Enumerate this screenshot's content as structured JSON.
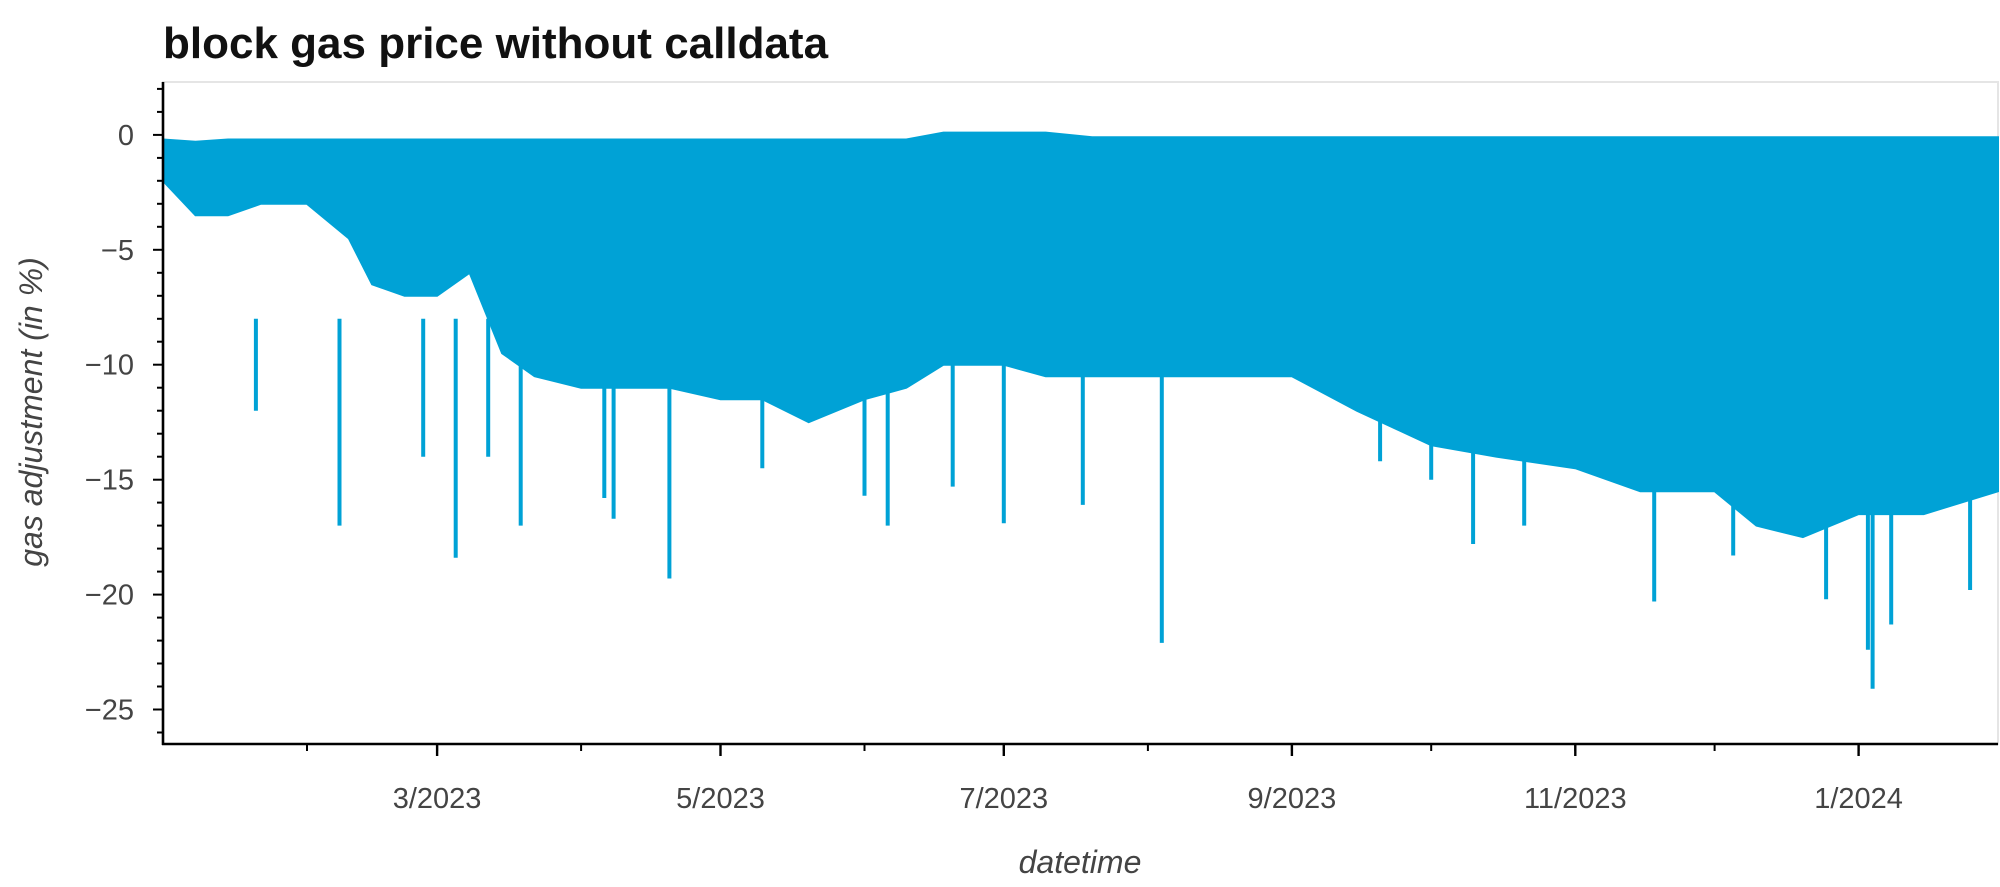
{
  "chart_data": {
    "type": "area",
    "title": "block gas price without calldata",
    "xlabel": "datetime",
    "ylabel": "gas adjustment (in %)",
    "x_range": [
      "2023-01-01",
      "2024-01-31"
    ],
    "ylim": [
      -26.5,
      2.3
    ],
    "x_ticks": [
      {
        "date": "2023-03-01",
        "label": "3/2023"
      },
      {
        "date": "2023-05-01",
        "label": "5/2023"
      },
      {
        "date": "2023-07-01",
        "label": "7/2023"
      },
      {
        "date": "2023-09-01",
        "label": "9/2023"
      },
      {
        "date": "2023-11-01",
        "label": "11/2023"
      },
      {
        "date": "2024-01-01",
        "label": "1/2024"
      }
    ],
    "y_ticks": [
      {
        "value": 0,
        "label": "0"
      },
      {
        "value": -5,
        "label": "−5"
      },
      {
        "value": -10,
        "label": "−10"
      },
      {
        "value": -15,
        "label": "−15"
      },
      {
        "value": -20,
        "label": "−20"
      },
      {
        "value": -25,
        "label": "−25"
      }
    ],
    "grid": false,
    "colors": {
      "series": "#00a2d6"
    },
    "series": [
      {
        "values_note": "daily envelope: upper = max adjustment, lower = min adjustment (in %)",
        "points": [
          {
            "x": "2023-01-01",
            "upper": -0.2,
            "lower": -2.0
          },
          {
            "x": "2023-01-08",
            "upper": -0.3,
            "lower": -3.5
          },
          {
            "x": "2023-01-15",
            "upper": -0.2,
            "lower": -3.5
          },
          {
            "x": "2023-01-22",
            "upper": -0.2,
            "lower": -3.0
          },
          {
            "x": "2023-02-01",
            "upper": -0.2,
            "lower": -3.0
          },
          {
            "x": "2023-02-10",
            "upper": -0.2,
            "lower": -4.5
          },
          {
            "x": "2023-02-15",
            "upper": -0.2,
            "lower": -6.5
          },
          {
            "x": "2023-02-22",
            "upper": -0.2,
            "lower": -7.0
          },
          {
            "x": "2023-03-01",
            "upper": -0.2,
            "lower": -7.0
          },
          {
            "x": "2023-03-08",
            "upper": -0.2,
            "lower": -6.0
          },
          {
            "x": "2023-03-15",
            "upper": -0.2,
            "lower": -9.5
          },
          {
            "x": "2023-03-22",
            "upper": -0.2,
            "lower": -10.5
          },
          {
            "x": "2023-04-01",
            "upper": -0.2,
            "lower": -11.0
          },
          {
            "x": "2023-04-10",
            "upper": -0.2,
            "lower": -11.0
          },
          {
            "x": "2023-04-20",
            "upper": -0.2,
            "lower": -11.0
          },
          {
            "x": "2023-05-01",
            "upper": -0.2,
            "lower": -11.5
          },
          {
            "x": "2023-05-10",
            "upper": -0.2,
            "lower": -11.5
          },
          {
            "x": "2023-05-20",
            "upper": -0.2,
            "lower": -12.5
          },
          {
            "x": "2023-06-01",
            "upper": -0.2,
            "lower": -11.5
          },
          {
            "x": "2023-06-10",
            "upper": -0.2,
            "lower": -11.0
          },
          {
            "x": "2023-06-18",
            "upper": 0.1,
            "lower": -10.0
          },
          {
            "x": "2023-07-01",
            "upper": 0.1,
            "lower": -10.0
          },
          {
            "x": "2023-07-10",
            "upper": 0.1,
            "lower": -10.5
          },
          {
            "x": "2023-07-20",
            "upper": -0.1,
            "lower": -10.5
          },
          {
            "x": "2023-08-01",
            "upper": -0.1,
            "lower": -10.5
          },
          {
            "x": "2023-08-15",
            "upper": -0.1,
            "lower": -10.5
          },
          {
            "x": "2023-09-01",
            "upper": -0.1,
            "lower": -10.5
          },
          {
            "x": "2023-09-15",
            "upper": -0.1,
            "lower": -12.0
          },
          {
            "x": "2023-10-01",
            "upper": -0.1,
            "lower": -13.5
          },
          {
            "x": "2023-10-15",
            "upper": -0.1,
            "lower": -14.0
          },
          {
            "x": "2023-11-01",
            "upper": -0.1,
            "lower": -14.5
          },
          {
            "x": "2023-11-15",
            "upper": -0.1,
            "lower": -15.5
          },
          {
            "x": "2023-12-01",
            "upper": -0.1,
            "lower": -15.5
          },
          {
            "x": "2023-12-10",
            "upper": -0.1,
            "lower": -17.0
          },
          {
            "x": "2023-12-20",
            "upper": -0.1,
            "lower": -17.5
          },
          {
            "x": "2024-01-01",
            "upper": -0.1,
            "lower": -16.5
          },
          {
            "x": "2024-01-15",
            "upper": -0.1,
            "lower": -16.5
          },
          {
            "x": "2024-01-31",
            "upper": -0.1,
            "lower": -15.5
          }
        ],
        "spikes": [
          {
            "x": "2023-01-21",
            "y": -12.0
          },
          {
            "x": "2023-02-08",
            "y": -17.0
          },
          {
            "x": "2023-02-26",
            "y": -14.0
          },
          {
            "x": "2023-03-05",
            "y": -18.4
          },
          {
            "x": "2023-03-12",
            "y": -14.0
          },
          {
            "x": "2023-03-19",
            "y": -17.0
          },
          {
            "x": "2023-04-06",
            "y": -15.8
          },
          {
            "x": "2023-04-08",
            "y": -16.7
          },
          {
            "x": "2023-04-20",
            "y": -19.3
          },
          {
            "x": "2023-05-10",
            "y": -14.5
          },
          {
            "x": "2023-06-01",
            "y": -15.7
          },
          {
            "x": "2023-06-06",
            "y": -17.0
          },
          {
            "x": "2023-06-20",
            "y": -15.3
          },
          {
            "x": "2023-07-01",
            "y": -16.9
          },
          {
            "x": "2023-07-18",
            "y": -16.1
          },
          {
            "x": "2023-08-04",
            "y": -22.1
          },
          {
            "x": "2023-09-20",
            "y": -14.2
          },
          {
            "x": "2023-10-01",
            "y": -15.0
          },
          {
            "x": "2023-10-10",
            "y": -17.8
          },
          {
            "x": "2023-10-21",
            "y": -17.0
          },
          {
            "x": "2023-11-18",
            "y": -20.3
          },
          {
            "x": "2023-12-05",
            "y": -18.3
          },
          {
            "x": "2023-12-25",
            "y": -20.2
          },
          {
            "x": "2024-01-03",
            "y": -22.4
          },
          {
            "x": "2024-01-04",
            "y": -24.1
          },
          {
            "x": "2024-01-08",
            "y": -21.3
          },
          {
            "x": "2024-01-25",
            "y": -19.8
          }
        ]
      }
    ]
  }
}
